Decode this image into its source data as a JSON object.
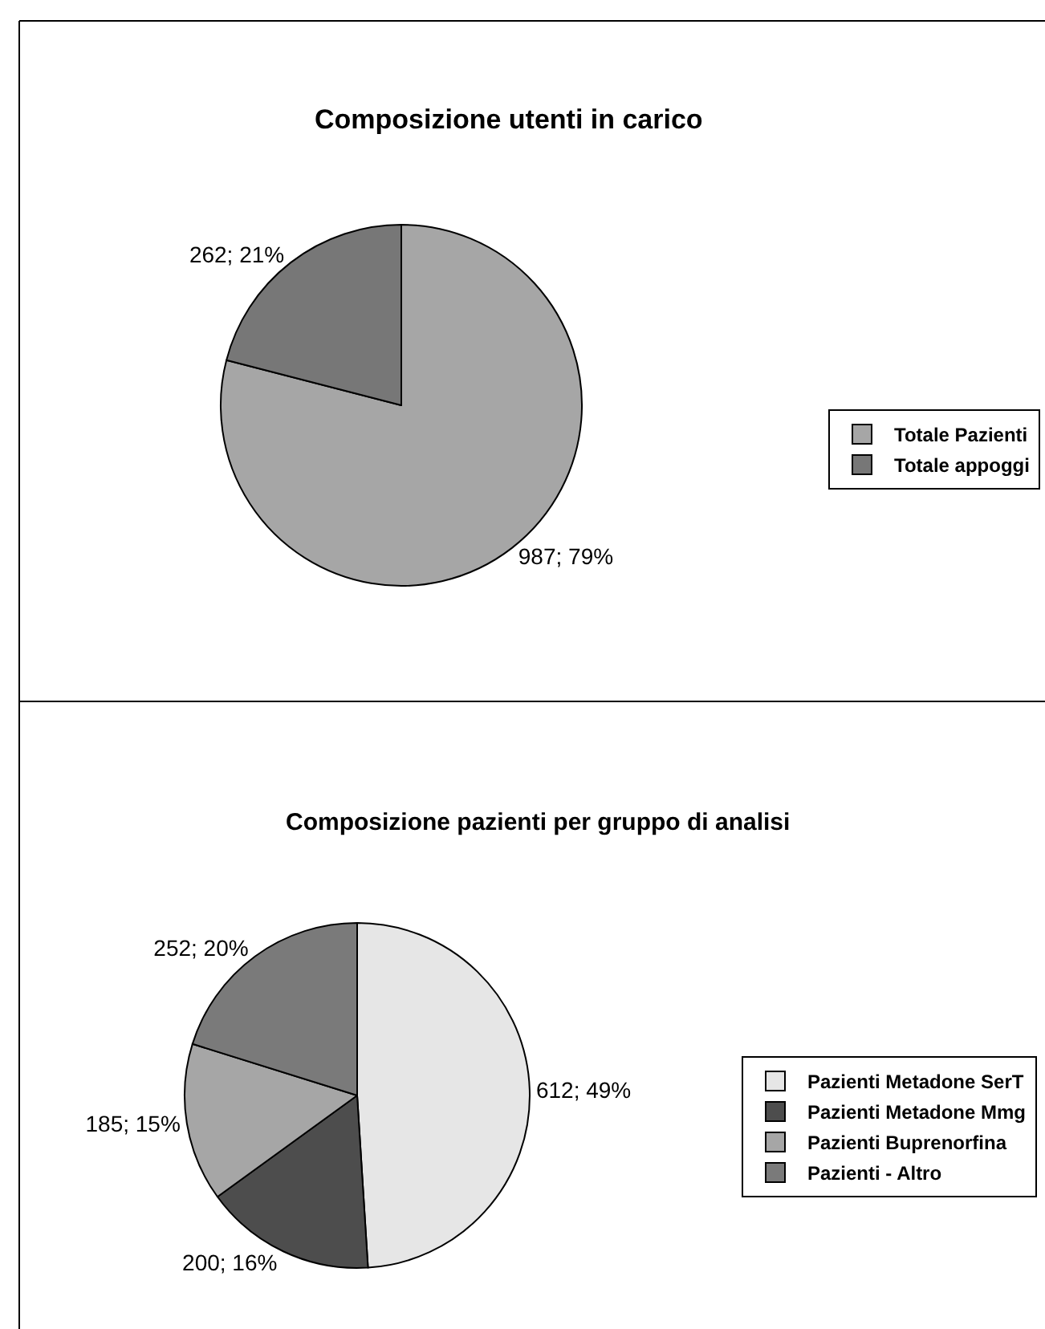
{
  "chart_data": [
    {
      "type": "pie",
      "title": "Composizione utenti in carico",
      "categories": [
        "Totale Pazienti",
        "Totale appoggi"
      ],
      "values": [
        987,
        262
      ],
      "colors": [
        "#a6a6a6",
        "#777777"
      ],
      "value_labels": [
        "987; 79%",
        "262; 21%"
      ],
      "legend": "right"
    },
    {
      "type": "pie",
      "title": "Composizione pazienti per gruppo di analisi",
      "categories": [
        "Pazienti Metadone SerT",
        "Pazienti Metadone Mmg",
        "Pazienti Buprenorfina",
        "Pazienti - Altro"
      ],
      "values": [
        612,
        200,
        185,
        252
      ],
      "colors": [
        "#e6e6e6",
        "#4d4d4d",
        "#a6a6a6",
        "#7a7a7a"
      ],
      "value_labels": [
        "612; 49%",
        "200; 16%",
        "185; 15%",
        "252; 20%"
      ],
      "legend": "right"
    }
  ]
}
